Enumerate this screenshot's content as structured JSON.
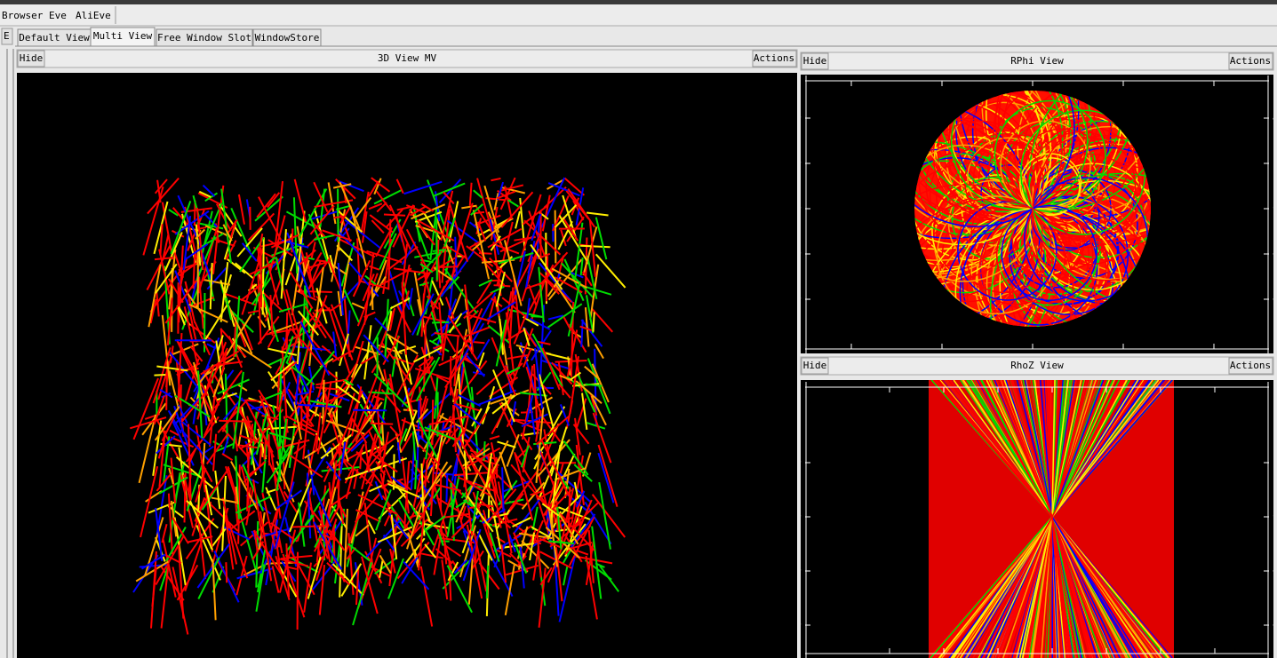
{
  "menu": [
    "Browser",
    "Eve",
    "AliEve"
  ],
  "side_tab": "E",
  "tabs": [
    "Default View",
    "Multi View",
    "Free Window Slot",
    "WindowStore"
  ],
  "views": [
    {
      "hide": "Hide",
      "title": "3D View MV",
      "actions": "Actions"
    },
    {
      "hide": "Hide",
      "title": "RPhi View",
      "actions": "Actions",
      "x_ticks": [
        -800,
        -400,
        0,
        400,
        800
      ],
      "y_ticks": [
        400,
        200,
        0,
        -200,
        -400
      ]
    },
    {
      "hide": "Hide",
      "title": "RhoZ View",
      "actions": "Actions",
      "x_ticks": [
        -600,
        -400,
        -200,
        0,
        200,
        400,
        600
      ],
      "y_ticks": [
        200,
        0,
        -200,
        -400
      ]
    }
  ]
}
